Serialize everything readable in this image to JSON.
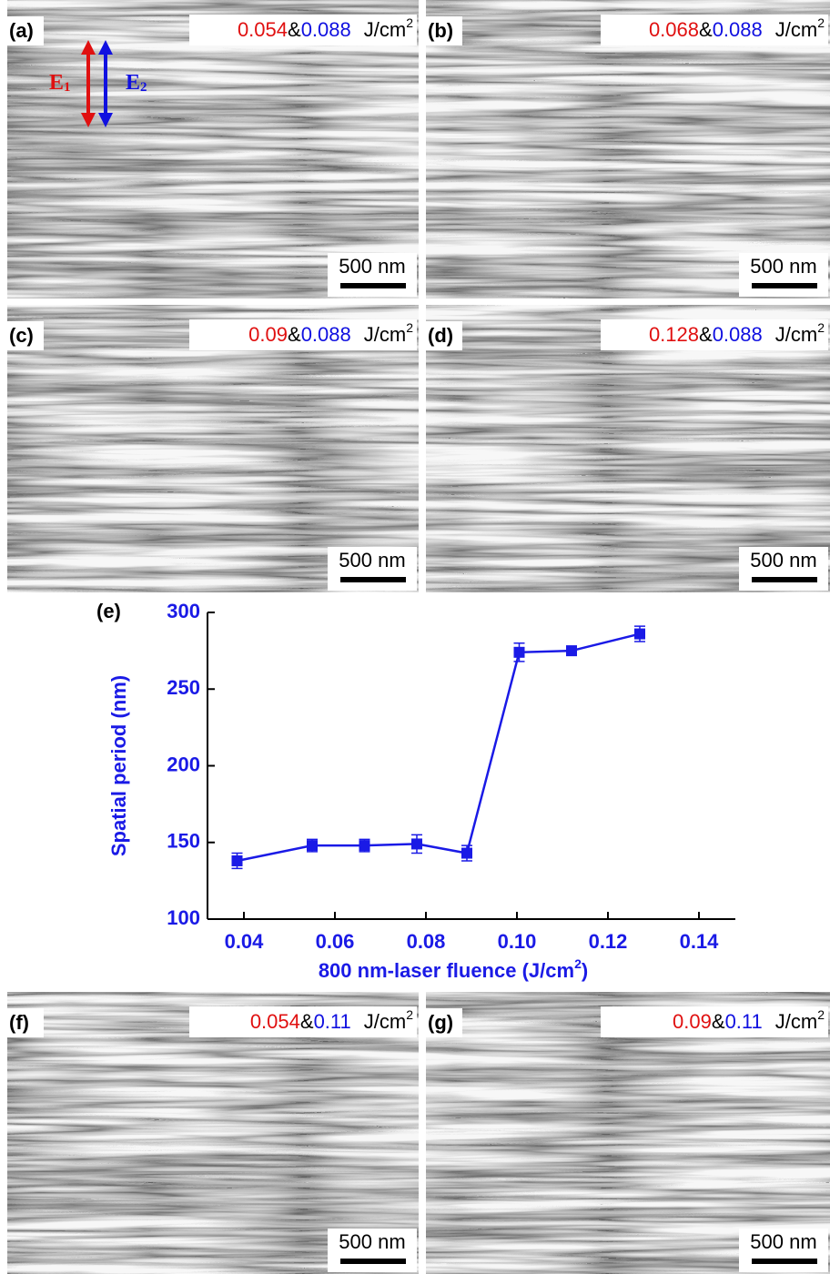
{
  "panels": [
    {
      "label": "(a)",
      "fluence_1": "0.054",
      "separator": "&",
      "fluence_2": "0.088",
      "unit": "J/cm",
      "unit_exponent": "2",
      "scale_bar": "500 nm"
    },
    {
      "label": "(b)",
      "fluence_1": "0.068",
      "separator": "&",
      "fluence_2": "0.088",
      "unit": "J/cm",
      "unit_exponent": "2",
      "scale_bar": "500 nm"
    },
    {
      "label": "(c)",
      "fluence_1": "0.09",
      "separator": "&",
      "fluence_2": "0.088",
      "unit": "J/cm",
      "unit_exponent": "2",
      "scale_bar": "500 nm"
    },
    {
      "label": "(d)",
      "fluence_1": "0.128",
      "separator": "&",
      "fluence_2": "0.088",
      "unit": "J/cm",
      "unit_exponent": "2",
      "scale_bar": "500 nm"
    },
    {
      "label": "(f)",
      "fluence_1": "0.054",
      "separator": "&",
      "fluence_2": "0.11",
      "unit": "J/cm",
      "unit_exponent": "2",
      "scale_bar": "500 nm"
    },
    {
      "label": "(g)",
      "fluence_1": "0.09",
      "separator": "&",
      "fluence_2": "0.11",
      "unit": "J/cm",
      "unit_exponent": "2",
      "scale_bar": "500 nm"
    }
  ],
  "polarization": {
    "e1": "E",
    "e1_sub": "1",
    "e2": "E",
    "e2_sub": "2"
  },
  "chart_data": {
    "type": "line",
    "panel_label": "(e)",
    "y_label": "Spatial period (nm)",
    "x_label": "800 nm-laser fluence (J/cm",
    "x_label_exponent": "2",
    "x_label_end": ")",
    "x": [
      0.0385,
      0.055,
      0.0665,
      0.078,
      0.089,
      0.1005,
      0.112,
      0.127
    ],
    "series": [
      {
        "color": "#1a1ae6",
        "values": [
          138,
          148,
          148,
          149,
          143,
          274,
          275,
          286
        ],
        "errors": [
          5,
          4,
          4,
          6,
          5,
          6,
          3,
          5
        ]
      }
    ],
    "xlim": [
      0.032,
      0.148
    ],
    "xticks": [
      0.04,
      0.06,
      0.08,
      {
        "value": 0.1,
        "label": "0.10"
      },
      0.12,
      0.14
    ],
    "ylim": [
      100,
      300
    ],
    "yticks": [
      100,
      150,
      200,
      250,
      300
    ],
    "label_color": "#1a1ae6"
  }
}
